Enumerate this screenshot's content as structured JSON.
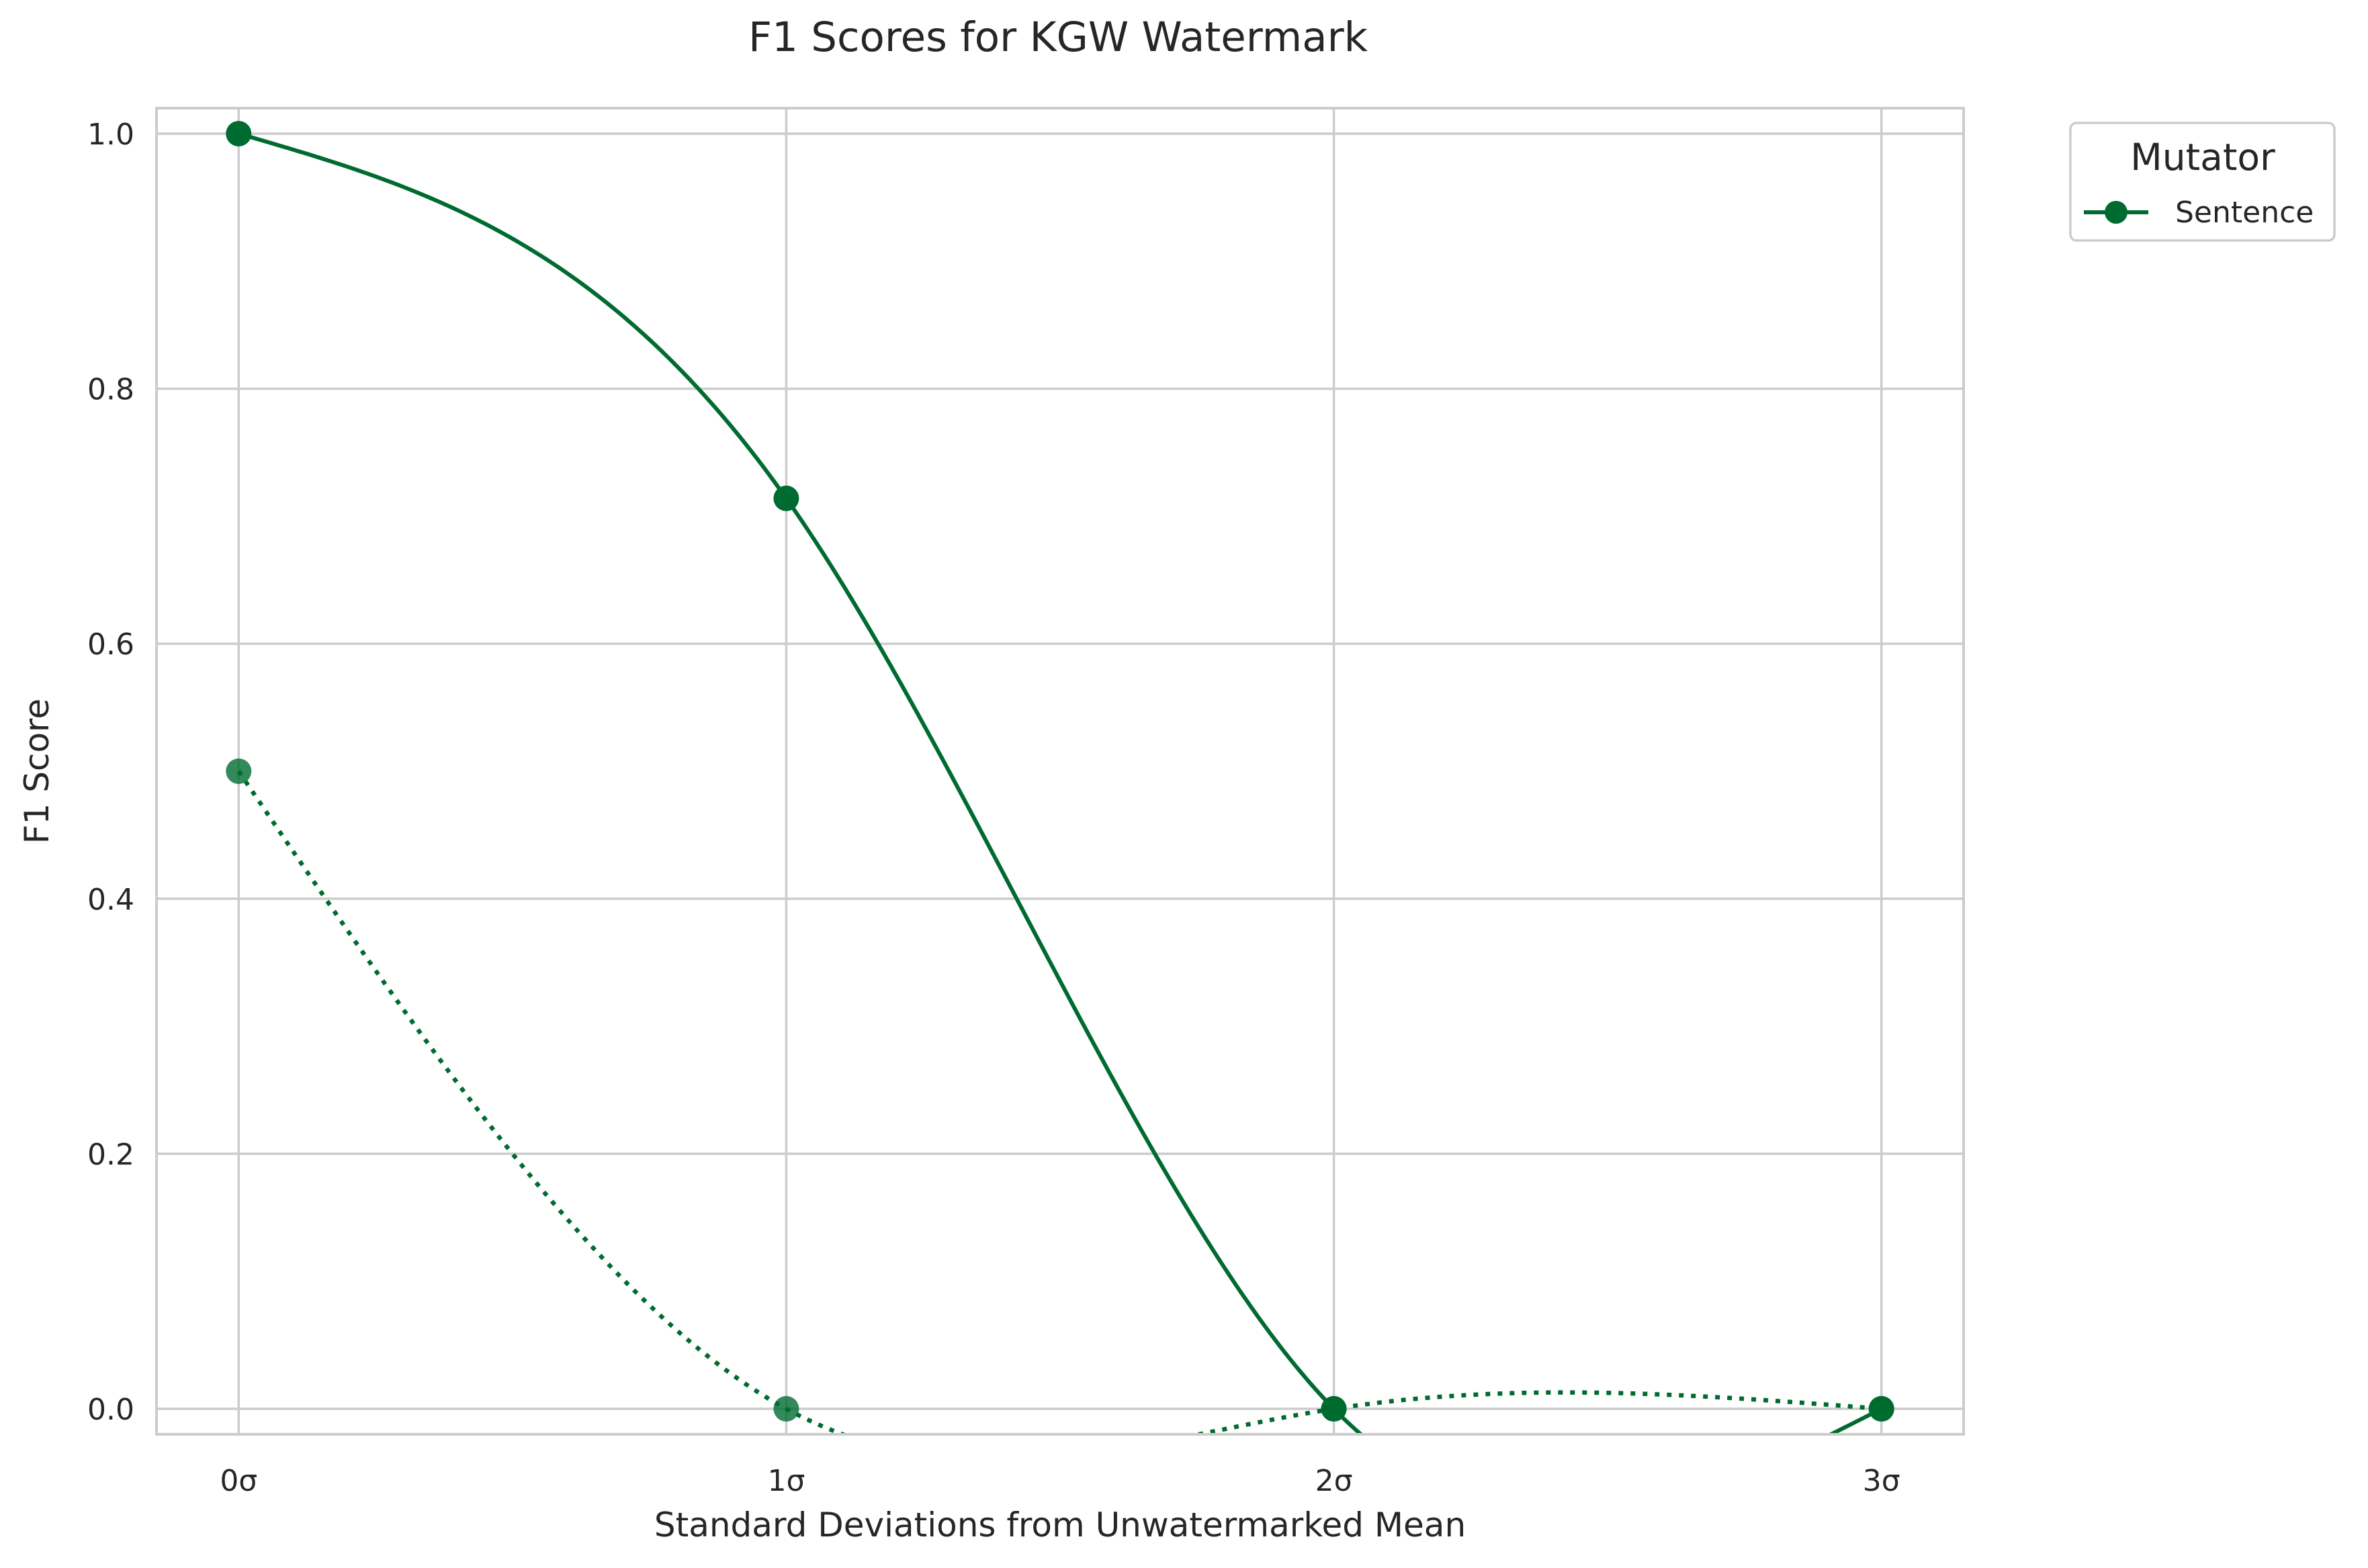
{
  "chart_data": {
    "type": "line",
    "title": "F1 Scores for KGW Watermark",
    "xlabel": "Standard Deviations from Unwatermarked Mean",
    "ylabel": "F1 Score",
    "x": [
      0,
      1,
      2,
      3
    ],
    "x_tick_labels": [
      "0σ",
      "1σ",
      "2σ",
      "3σ"
    ],
    "y_ticks": [
      0.0,
      0.2,
      0.4,
      0.6,
      0.8,
      1.0
    ],
    "y_tick_labels": [
      "0.0",
      "0.2",
      "0.4",
      "0.6",
      "0.8",
      "1.0"
    ],
    "xlim": [
      -0.15,
      3.15
    ],
    "ylim": [
      -0.02,
      1.02
    ],
    "grid": true,
    "legend": {
      "title": "Mutator",
      "placement": "outside-top-right",
      "entries": [
        "Sentence"
      ]
    },
    "series": [
      {
        "name": "Sentence",
        "style": "solid",
        "marker": "circle",
        "color": "#006b30",
        "values": [
          1.0,
          0.714,
          0.0,
          0.0
        ]
      },
      {
        "style": "dotted",
        "marker": "circle",
        "color": "#006b30",
        "values": [
          0.5,
          0.0,
          0.0,
          0.0
        ]
      }
    ]
  }
}
